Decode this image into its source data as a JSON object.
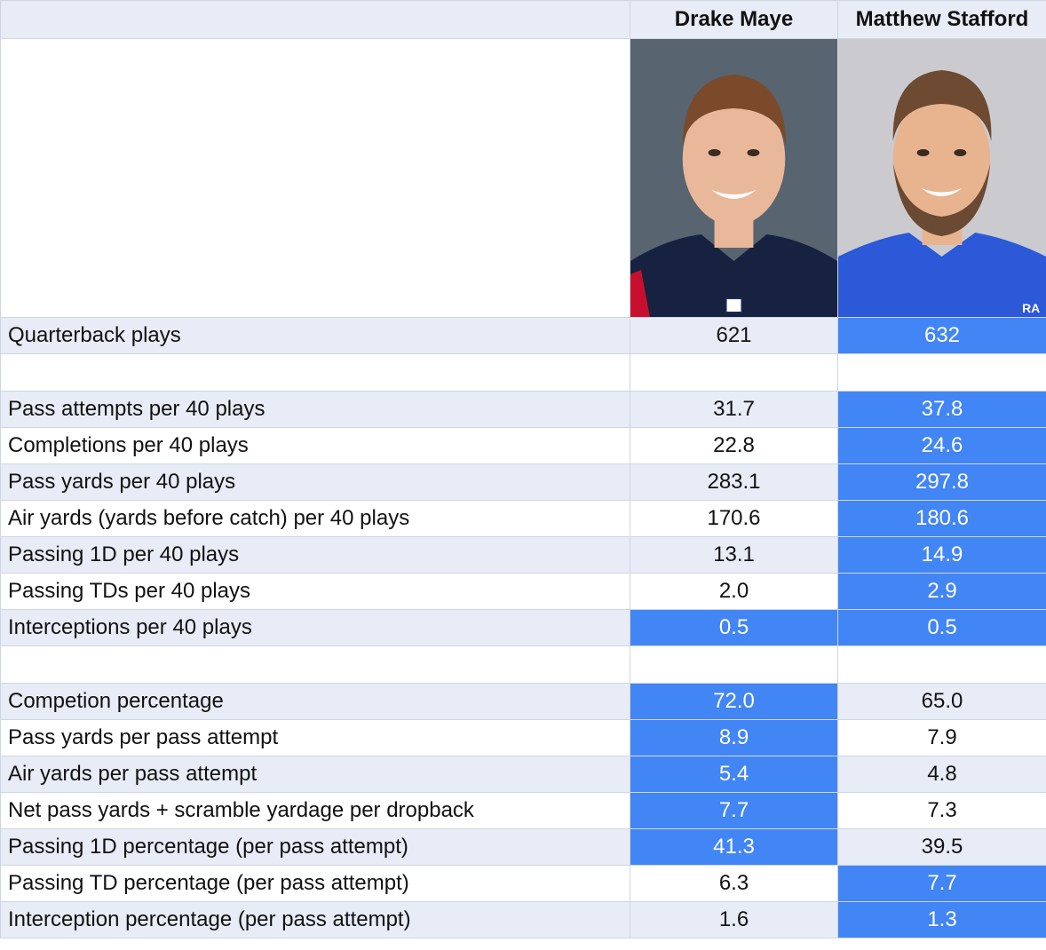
{
  "players": [
    {
      "name": "Drake Maye",
      "bg": "#58646f",
      "jersey": "#16223f",
      "hair": "#7a4a2a",
      "skin": "#e9b89a"
    },
    {
      "name": "Matthew Stafford",
      "bg": "#cbcbcf",
      "jersey": "#2b59d8",
      "hair": "#6d4a31",
      "skin": "#e7b48f",
      "jersey_text": "RA"
    }
  ],
  "rows": [
    {
      "type": "data",
      "style": "shaded",
      "label": "Quarterback plays",
      "values": [
        "621",
        "632"
      ],
      "highlight": [
        false,
        true
      ]
    },
    {
      "type": "spacer"
    },
    {
      "type": "data",
      "style": "shaded",
      "label": "Pass attempts per 40 plays",
      "values": [
        "31.7",
        "37.8"
      ],
      "highlight": [
        false,
        true
      ]
    },
    {
      "type": "data",
      "style": "plain",
      "label": "Completions per 40 plays",
      "values": [
        "22.8",
        "24.6"
      ],
      "highlight": [
        false,
        true
      ]
    },
    {
      "type": "data",
      "style": "shaded",
      "label": "Pass yards per 40 plays",
      "values": [
        "283.1",
        "297.8"
      ],
      "highlight": [
        false,
        true
      ]
    },
    {
      "type": "data",
      "style": "plain",
      "label": "Air yards (yards before catch) per 40 plays",
      "values": [
        "170.6",
        "180.6"
      ],
      "highlight": [
        false,
        true
      ]
    },
    {
      "type": "data",
      "style": "shaded",
      "label": "Passing 1D per 40 plays",
      "values": [
        "13.1",
        "14.9"
      ],
      "highlight": [
        false,
        true
      ]
    },
    {
      "type": "data",
      "style": "plain",
      "label": "Passing TDs per 40 plays",
      "values": [
        "2.0",
        "2.9"
      ],
      "highlight": [
        false,
        true
      ]
    },
    {
      "type": "data",
      "style": "shaded",
      "label": "Interceptions per 40 plays",
      "values": [
        "0.5",
        "0.5"
      ],
      "highlight": [
        true,
        true
      ]
    },
    {
      "type": "spacer"
    },
    {
      "type": "data",
      "style": "shaded",
      "label": "Competion percentage",
      "values": [
        "72.0",
        "65.0"
      ],
      "highlight": [
        true,
        false
      ]
    },
    {
      "type": "data",
      "style": "plain",
      "label": "Pass yards per pass attempt",
      "values": [
        "8.9",
        "7.9"
      ],
      "highlight": [
        true,
        false
      ]
    },
    {
      "type": "data",
      "style": "shaded",
      "label": "Air yards per pass attempt",
      "values": [
        "5.4",
        "4.8"
      ],
      "highlight": [
        true,
        false
      ]
    },
    {
      "type": "data",
      "style": "plain",
      "label": "Net pass yards + scramble yardage per dropback",
      "values": [
        "7.7",
        "7.3"
      ],
      "highlight": [
        true,
        false
      ]
    },
    {
      "type": "data",
      "style": "shaded",
      "label": "Passing 1D percentage (per pass attempt)",
      "values": [
        "41.3",
        "39.5"
      ],
      "highlight": [
        true,
        false
      ]
    },
    {
      "type": "data",
      "style": "plain",
      "label": "Passing TD percentage (per pass attempt)",
      "values": [
        "6.3",
        "7.7"
      ],
      "highlight": [
        false,
        true
      ]
    },
    {
      "type": "data",
      "style": "shaded",
      "label": "Interception percentage (per pass attempt)",
      "values": [
        "1.6",
        "1.3"
      ],
      "highlight": [
        false,
        true
      ]
    }
  ]
}
